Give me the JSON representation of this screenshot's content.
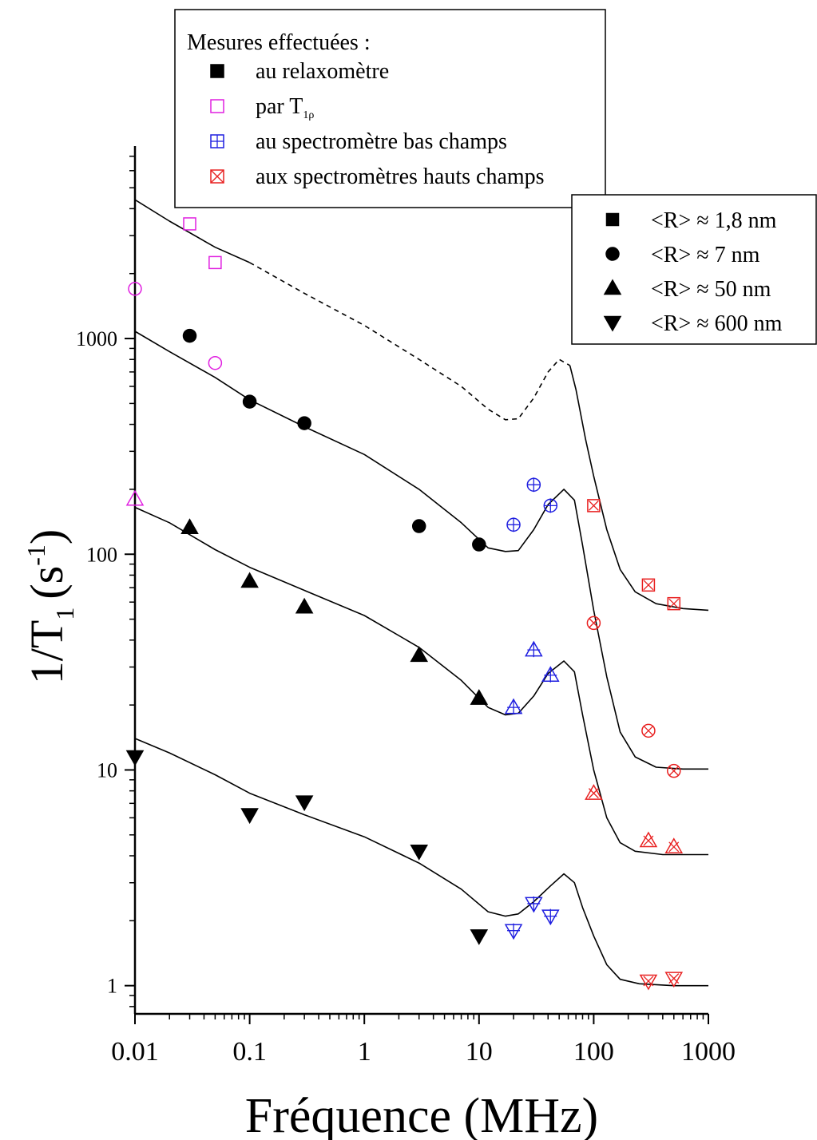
{
  "chart_data": {
    "type": "scatter",
    "x_scale": "log",
    "y_scale": "log",
    "xlim": [
      0.01,
      1000
    ],
    "ylim": [
      0.74,
      7800
    ],
    "xlabel": "Fréquence (MHz)",
    "ylabel": {
      "main": "1/T",
      "sub": "1",
      "paren": "(s",
      "sup": "-1",
      "close": ")"
    },
    "x_ticks": [
      {
        "value": 0.01,
        "label": "0.01"
      },
      {
        "value": 0.1,
        "label": "0.1"
      },
      {
        "value": 1,
        "label": "1"
      },
      {
        "value": 10,
        "label": "10"
      },
      {
        "value": 100,
        "label": "100"
      },
      {
        "value": 1000,
        "label": "1000"
      }
    ],
    "y_ticks": [
      {
        "value": 1,
        "label": "1"
      },
      {
        "value": 10,
        "label": "10"
      },
      {
        "value": 100,
        "label": "100"
      },
      {
        "value": 1000,
        "label": "1000"
      }
    ],
    "colors": {
      "relaxometre": "#000000",
      "t1rho": "#e020e0",
      "bas_champs": "#1f1fe0",
      "hauts_champs": "#e82020"
    },
    "legend_methods": {
      "title": "Mesures effectuées :",
      "placement": "top-center",
      "items": [
        {
          "label": "au relaxomètre",
          "marker": "filled-square",
          "color": "#000000"
        },
        {
          "label": "par T",
          "sub": "1ρ",
          "marker": "open-square",
          "color": "#e020e0"
        },
        {
          "label": "au spectromètre bas champs",
          "marker": "plus-square",
          "color": "#1f1fe0"
        },
        {
          "label": "aux spectromètres hauts champs",
          "marker": "cross-square",
          "color": "#e82020"
        }
      ]
    },
    "legend_sizes": {
      "placement": "top-right",
      "items": [
        {
          "label": "<R> ≈ 1,8 nm",
          "shape": "square"
        },
        {
          "label": "<R> ≈ 7 nm",
          "shape": "circle"
        },
        {
          "label": "<R> ≈ 50 nm",
          "shape": "triangle-up"
        },
        {
          "label": "<R> ≈ 600 nm",
          "shape": "triangle-down"
        }
      ]
    },
    "series": [
      {
        "shape": "square",
        "points": [
          {
            "x": 0.03,
            "y": 3400,
            "method": "t1rho"
          },
          {
            "x": 0.05,
            "y": 2250,
            "method": "t1rho"
          },
          {
            "x": 100,
            "y": 168,
            "method": "hauts_champs"
          },
          {
            "x": 300,
            "y": 72,
            "method": "hauts_champs"
          },
          {
            "x": 500,
            "y": 59,
            "method": "hauts_champs"
          }
        ]
      },
      {
        "shape": "circle",
        "points": [
          {
            "x": 0.01,
            "y": 1700,
            "method": "t1rho"
          },
          {
            "x": 0.05,
            "y": 770,
            "method": "t1rho"
          },
          {
            "x": 0.03,
            "y": 1030,
            "method": "relaxometre"
          },
          {
            "x": 0.1,
            "y": 510,
            "method": "relaxometre"
          },
          {
            "x": 0.3,
            "y": 405,
            "method": "relaxometre"
          },
          {
            "x": 3,
            "y": 135,
            "method": "relaxometre"
          },
          {
            "x": 10,
            "y": 111,
            "method": "relaxometre"
          },
          {
            "x": 20,
            "y": 137,
            "method": "bas_champs"
          },
          {
            "x": 30,
            "y": 210,
            "method": "bas_champs"
          },
          {
            "x": 42,
            "y": 168,
            "method": "bas_champs"
          },
          {
            "x": 100,
            "y": 48,
            "method": "hauts_champs"
          },
          {
            "x": 300,
            "y": 15.2,
            "method": "hauts_champs"
          },
          {
            "x": 500,
            "y": 9.9,
            "method": "hauts_champs"
          }
        ]
      },
      {
        "shape": "triangle-up",
        "points": [
          {
            "x": 0.01,
            "y": 180,
            "method": "t1rho"
          },
          {
            "x": 0.03,
            "y": 133,
            "method": "relaxometre"
          },
          {
            "x": 0.1,
            "y": 75,
            "method": "relaxometre"
          },
          {
            "x": 0.3,
            "y": 57,
            "method": "relaxometre"
          },
          {
            "x": 3,
            "y": 34,
            "method": "relaxometre"
          },
          {
            "x": 10,
            "y": 21.5,
            "method": "relaxometre"
          },
          {
            "x": 20,
            "y": 19.5,
            "method": "bas_champs"
          },
          {
            "x": 30,
            "y": 36,
            "method": "bas_champs"
          },
          {
            "x": 42,
            "y": 27.5,
            "method": "bas_champs"
          },
          {
            "x": 100,
            "y": 7.8,
            "method": "hauts_champs"
          },
          {
            "x": 300,
            "y": 4.7,
            "method": "hauts_champs"
          },
          {
            "x": 500,
            "y": 4.4,
            "method": "hauts_champs"
          }
        ]
      },
      {
        "shape": "triangle-down",
        "points": [
          {
            "x": 0.01,
            "y": 11.5,
            "method": "relaxometre"
          },
          {
            "x": 0.1,
            "y": 6.2,
            "method": "relaxometre"
          },
          {
            "x": 0.3,
            "y": 7.1,
            "method": "relaxometre"
          },
          {
            "x": 3,
            "y": 4.2,
            "method": "relaxometre"
          },
          {
            "x": 10,
            "y": 1.7,
            "method": "relaxometre"
          },
          {
            "x": 20,
            "y": 1.8,
            "method": "bas_champs"
          },
          {
            "x": 30,
            "y": 2.4,
            "method": "bas_champs"
          },
          {
            "x": 42,
            "y": 2.1,
            "method": "bas_champs"
          },
          {
            "x": 300,
            "y": 1.05,
            "method": "hauts_champs"
          },
          {
            "x": 500,
            "y": 1.08,
            "method": "hauts_champs"
          }
        ]
      }
    ],
    "curves": [
      {
        "shape": "square",
        "style": "solid",
        "points": [
          [
            0.01,
            4400
          ],
          [
            0.02,
            3500
          ],
          [
            0.05,
            2650
          ],
          [
            0.1,
            2250
          ]
        ]
      },
      {
        "shape": "square",
        "style": "dashed",
        "points": [
          [
            0.1,
            2250
          ],
          [
            0.3,
            1620
          ],
          [
            1,
            1150
          ],
          [
            3,
            800
          ],
          [
            7,
            600
          ],
          [
            12,
            470
          ],
          [
            17,
            420
          ],
          [
            22,
            425
          ],
          [
            30,
            530
          ],
          [
            40,
            700
          ],
          [
            50,
            800
          ],
          [
            62,
            750
          ]
        ]
      },
      {
        "shape": "square",
        "style": "solid",
        "points": [
          [
            62,
            750
          ],
          [
            70,
            580
          ],
          [
            85,
            340
          ],
          [
            100,
            230
          ],
          [
            130,
            130
          ],
          [
            170,
            85
          ],
          [
            230,
            67
          ],
          [
            350,
            59
          ],
          [
            600,
            56
          ],
          [
            1000,
            55
          ]
        ]
      },
      {
        "shape": "circle",
        "style": "solid",
        "points": [
          [
            0.01,
            1080
          ],
          [
            0.02,
            870
          ],
          [
            0.05,
            660
          ],
          [
            0.1,
            520
          ],
          [
            0.3,
            390
          ],
          [
            1,
            290
          ],
          [
            3,
            200
          ],
          [
            7,
            140
          ],
          [
            12,
            107
          ],
          [
            17,
            103
          ],
          [
            22,
            104
          ],
          [
            30,
            130
          ],
          [
            40,
            170
          ],
          [
            55,
            200
          ],
          [
            68,
            178
          ],
          [
            80,
            110
          ],
          [
            100,
            55
          ],
          [
            130,
            27
          ],
          [
            170,
            15
          ],
          [
            230,
            11.5
          ],
          [
            350,
            10.3
          ],
          [
            600,
            10.1
          ],
          [
            1000,
            10.1
          ]
        ]
      },
      {
        "shape": "triangle-up",
        "style": "solid",
        "points": [
          [
            0.01,
            165
          ],
          [
            0.02,
            140
          ],
          [
            0.05,
            105
          ],
          [
            0.1,
            87
          ],
          [
            0.3,
            68
          ],
          [
            1,
            52
          ],
          [
            3,
            37
          ],
          [
            7,
            26
          ],
          [
            12,
            19.5
          ],
          [
            17,
            18
          ],
          [
            22,
            18.3
          ],
          [
            30,
            22
          ],
          [
            40,
            28
          ],
          [
            55,
            32
          ],
          [
            68,
            28.5
          ],
          [
            80,
            18
          ],
          [
            100,
            10
          ],
          [
            130,
            6
          ],
          [
            170,
            4.6
          ],
          [
            230,
            4.2
          ],
          [
            400,
            4.05
          ],
          [
            1000,
            4.05
          ]
        ]
      },
      {
        "shape": "triangle-down",
        "style": "solid",
        "points": [
          [
            0.01,
            14
          ],
          [
            0.02,
            12
          ],
          [
            0.05,
            9.5
          ],
          [
            0.1,
            7.8
          ],
          [
            0.3,
            6.2
          ],
          [
            1,
            4.9
          ],
          [
            3,
            3.7
          ],
          [
            7,
            2.8
          ],
          [
            12,
            2.2
          ],
          [
            17,
            2.1
          ],
          [
            22,
            2.15
          ],
          [
            30,
            2.45
          ],
          [
            42,
            2.9
          ],
          [
            55,
            3.3
          ],
          [
            68,
            3.0
          ],
          [
            80,
            2.3
          ],
          [
            100,
            1.7
          ],
          [
            130,
            1.25
          ],
          [
            170,
            1.07
          ],
          [
            250,
            1.02
          ],
          [
            500,
            1.0
          ],
          [
            1000,
            1.0
          ]
        ]
      }
    ]
  }
}
